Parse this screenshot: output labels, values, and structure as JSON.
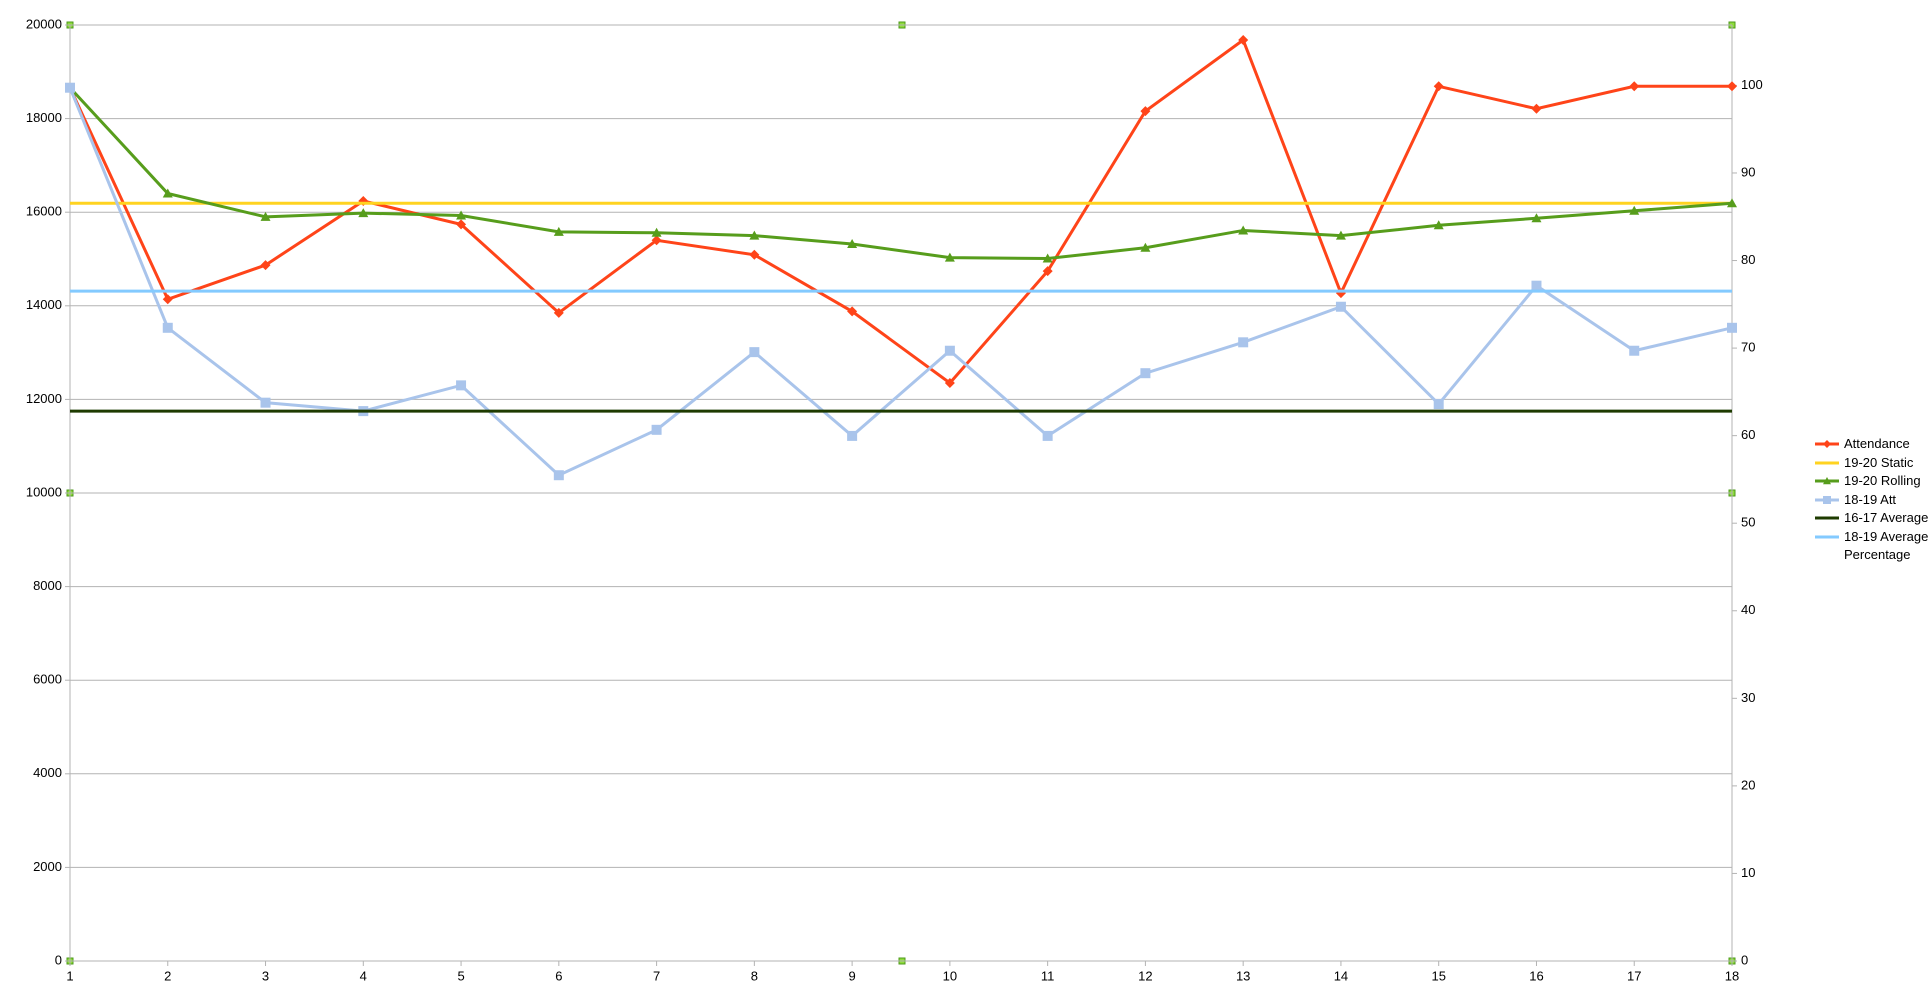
{
  "chart_data": {
    "type": "line",
    "x": [
      1,
      2,
      3,
      4,
      5,
      6,
      7,
      8,
      9,
      10,
      11,
      12,
      13,
      14,
      15,
      16,
      17,
      18
    ],
    "xlim": [
      1,
      18
    ],
    "xticks": [
      1,
      2,
      3,
      4,
      5,
      6,
      7,
      8,
      9,
      10,
      11,
      12,
      13,
      14,
      15,
      16,
      17,
      18
    ],
    "ylim": [
      0,
      20000
    ],
    "yticks": [
      0,
      2000,
      4000,
      6000,
      8000,
      10000,
      12000,
      14000,
      16000,
      18000,
      20000
    ],
    "y2lim": [
      0,
      106.9
    ],
    "y2ticks": [
      0,
      10,
      20,
      30,
      40,
      50,
      60,
      70,
      80,
      90,
      100
    ],
    "grid": true,
    "legend": "right",
    "series": [
      {
        "name": "Attendance",
        "color": "#ff4419",
        "marker": "diamond",
        "values": [
          18660,
          14140,
          14870,
          16240,
          15740,
          13850,
          15400,
          15090,
          13880,
          12350,
          14740,
          18160,
          19680,
          14270,
          18690,
          18210,
          18690,
          18690
        ]
      },
      {
        "name": "19-20 Static",
        "color": "#ffd320",
        "marker": null,
        "values": [
          16190,
          16190,
          16190,
          16190,
          16190,
          16190,
          16190,
          16190,
          16190,
          16190,
          16190,
          16190,
          16190,
          16190,
          16190,
          16190,
          16190,
          16190
        ]
      },
      {
        "name": "19-20 Rolling",
        "color": "#579d1c",
        "marker": "triangle",
        "values": [
          18660,
          16400,
          15900,
          15980,
          15930,
          15580,
          15560,
          15500,
          15320,
          15030,
          15010,
          15240,
          15610,
          15500,
          15720,
          15870,
          16030,
          16190
        ]
      },
      {
        "name": "18-19 Att",
        "color": "#a9c4eb",
        "marker": "square",
        "values": [
          18660,
          13530,
          11930,
          11750,
          12300,
          10380,
          11350,
          13010,
          11220,
          13040,
          11220,
          12560,
          13220,
          13980,
          11900,
          14430,
          13040,
          13530
        ]
      },
      {
        "name": "16-17 Average",
        "color": "#1e3b00",
        "marker": null,
        "values": [
          11750,
          11750,
          11750,
          11750,
          11750,
          11750,
          11750,
          11750,
          11750,
          11750,
          11750,
          11750,
          11750,
          11750,
          11750,
          11750,
          11750,
          11750
        ]
      },
      {
        "name": "18-19 Average Percentage",
        "color": "#83caff",
        "marker": null,
        "axis": "y2",
        "values": [
          76.5,
          76.5,
          76.5,
          76.5,
          76.5,
          76.5,
          76.5,
          76.5,
          76.5,
          76.5,
          76.5,
          76.5,
          76.5,
          76.5,
          76.5,
          76.5,
          76.5,
          76.5
        ]
      }
    ]
  }
}
